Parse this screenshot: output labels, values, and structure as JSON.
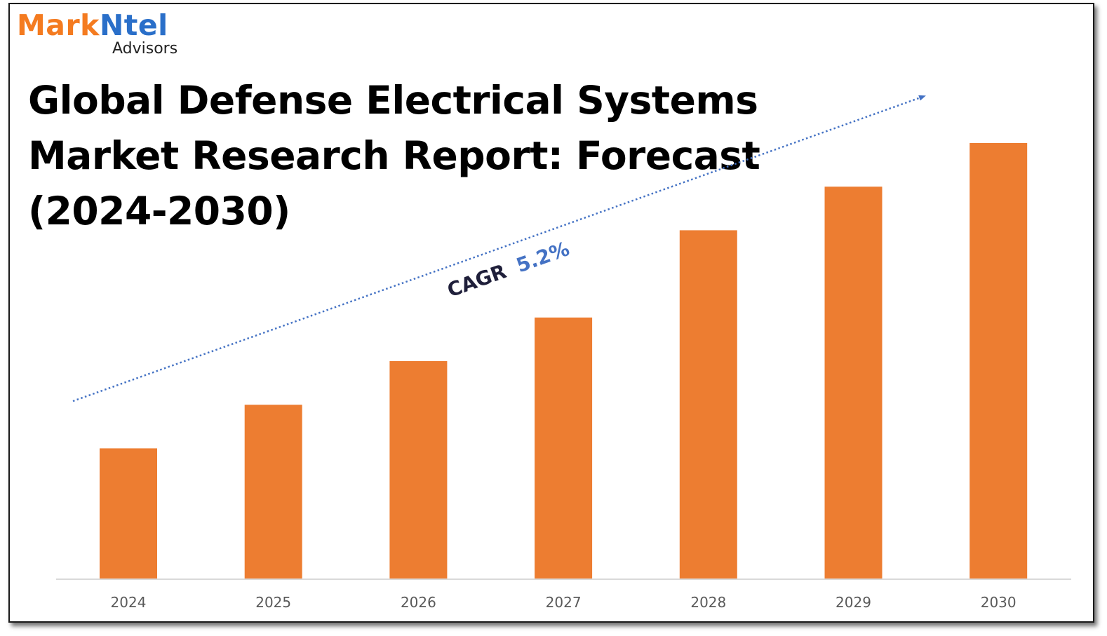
{
  "brand": {
    "logo_part1": "Mark",
    "logo_part2": "Ntel",
    "logo_sub": "Advisors",
    "colors": {
      "orange": "#f47b20",
      "blue": "#2a6fc9"
    }
  },
  "title_lines": [
    "Global Defense Electrical Systems",
    "Market Research Report: Forecast",
    "(2024-2030)"
  ],
  "chart_data": {
    "type": "bar",
    "title": "Global Defense Electrical Systems Market Research Report: Forecast (2024-2030)",
    "categories": [
      "2024",
      "2025",
      "2026",
      "2027",
      "2028",
      "2029",
      "2030"
    ],
    "values": [
      30,
      40,
      50,
      60,
      80,
      90,
      100
    ],
    "ylim": [
      0,
      100
    ],
    "xlabel": "",
    "ylabel": "",
    "grid": false,
    "bar_color": "#ed7d31",
    "annotation": {
      "label": "CAGR",
      "value": "5.2%",
      "label_color": "#1f1f3a",
      "value_color": "#4472c4",
      "trend_arrow_color": "#4472c4"
    }
  }
}
